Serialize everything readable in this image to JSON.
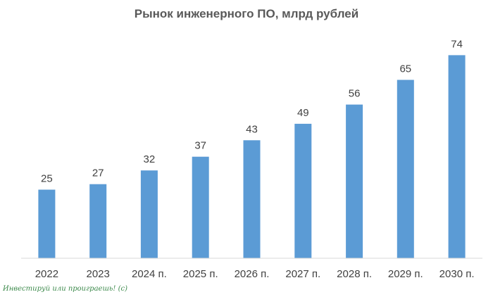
{
  "chart_data": {
    "type": "bar",
    "title": "Рынок инженерного ПО, млрд рублей",
    "categories": [
      "2022",
      "2023",
      "2024 п.",
      "2025 п.",
      "2026 п.",
      "2027 п.",
      "2028 п.",
      "2029 п.",
      "2030 п."
    ],
    "values": [
      25,
      27,
      32,
      37,
      43,
      49,
      56,
      65,
      74
    ],
    "xlabel": "",
    "ylabel": "",
    "ylim": [
      0,
      80
    ],
    "grid": false,
    "legend": "none",
    "bar_color": "#5b9bd5",
    "axis_color": "#d9d9d9"
  },
  "watermark": "Инвестируй или проиграешь! (с)"
}
